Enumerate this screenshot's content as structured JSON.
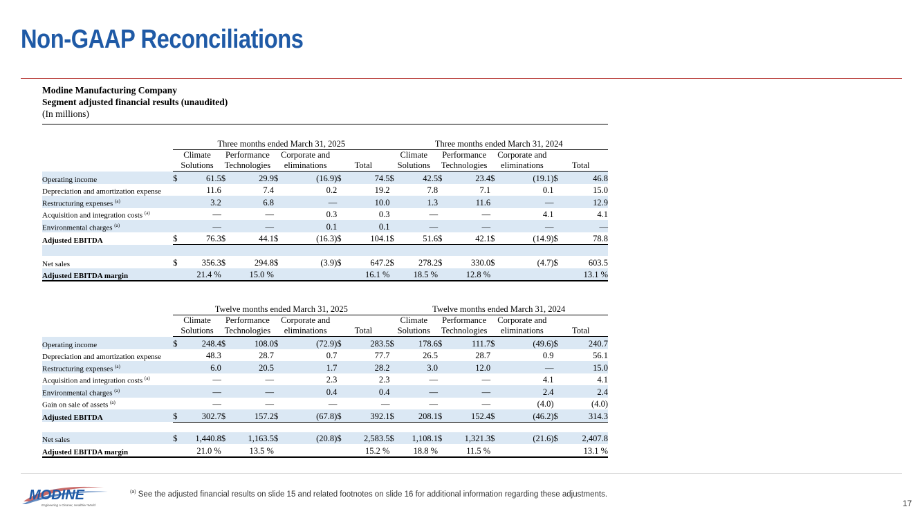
{
  "title": "Non-GAAP Reconciliations",
  "company": {
    "name": "Modine Manufacturing Company",
    "subtitle": "Segment adjusted financial results (unaudited)",
    "units": "(In millions)"
  },
  "columns": {
    "climate": [
      "Climate",
      "Solutions"
    ],
    "performance": [
      "Performance",
      "Technologies"
    ],
    "corporate": [
      "Corporate and",
      "eliminations"
    ],
    "total": "Total"
  },
  "table1": {
    "period_a": "Three months ended March 31, 2025",
    "period_b": "Three months ended March 31, 2024",
    "rows": [
      {
        "label": "Operating income",
        "shade": true,
        "cells": [
          "$",
          "61.5",
          "$",
          "29.9",
          "$",
          "(16.9)",
          "$",
          "74.5",
          "$",
          "42.5",
          "$",
          "23.4",
          "$",
          "(19.1)",
          "$",
          "46.8"
        ]
      },
      {
        "label": "Depreciation and amortization expense",
        "shade": false,
        "cells": [
          "",
          "11.6",
          "",
          "7.4",
          "",
          "0.2",
          "",
          "19.2",
          "",
          "7.8",
          "",
          "7.1",
          "",
          "0.1",
          "",
          "15.0"
        ]
      },
      {
        "label": "Restructuring expenses",
        "sup": "(a)",
        "shade": true,
        "cells": [
          "",
          "3.2",
          "",
          "6.8",
          "",
          "—",
          "",
          "10.0",
          "",
          "1.3",
          "",
          "11.6",
          "",
          "—",
          "",
          "12.9"
        ]
      },
      {
        "label": "Acquisition and integration costs",
        "sup": "(a)",
        "shade": false,
        "cells": [
          "",
          "—",
          "",
          "—",
          "",
          "0.3",
          "",
          "0.3",
          "",
          "—",
          "",
          "—",
          "",
          "4.1",
          "",
          "4.1"
        ]
      },
      {
        "label": "Environmental charges",
        "sup": "(a)",
        "shade": true,
        "cells": [
          "",
          "—",
          "",
          "—",
          "",
          "0.1",
          "",
          "0.1",
          "",
          "—",
          "",
          "—",
          "",
          "—",
          "",
          "—"
        ]
      },
      {
        "label": "Adjusted EBITDA",
        "bold": true,
        "shade": false,
        "cells": [
          "$",
          "76.3",
          "$",
          "44.1",
          "$",
          "(16.3)",
          "$",
          "104.1",
          "$",
          "51.6",
          "$",
          "42.1",
          "$",
          "(14.9)",
          "$",
          "78.8"
        ]
      },
      {
        "label": "Net sales",
        "shade": false,
        "cells": [
          "$",
          "356.3",
          "$",
          "294.8",
          "$",
          "(3.9)",
          "$",
          "647.2",
          "$",
          "278.2",
          "$",
          "330.0",
          "$",
          "(4.7)",
          "$",
          "603.5"
        ]
      },
      {
        "label": "Adjusted EBITDA margin",
        "bold": true,
        "shade": true,
        "cells": [
          "",
          "21.4 %",
          "",
          "15.0 %",
          "",
          "",
          "",
          "16.1 %",
          "",
          "18.5 %",
          "",
          "12.8 %",
          "",
          "",
          "",
          "13.1 %"
        ]
      }
    ]
  },
  "table2": {
    "period_a": "Twelve months ended March 31, 2025",
    "period_b": "Twelve months ended March 31, 2024",
    "rows": [
      {
        "label": "Operating income",
        "shade": true,
        "cells": [
          "$",
          "248.4",
          "$",
          "108.0",
          "$",
          "(72.9)",
          "$",
          "283.5",
          "$",
          "178.6",
          "$",
          "111.7",
          "$",
          "(49.6)",
          "$",
          "240.7"
        ]
      },
      {
        "label": "Depreciation and amortization expense",
        "shade": false,
        "cells": [
          "",
          "48.3",
          "",
          "28.7",
          "",
          "0.7",
          "",
          "77.7",
          "",
          "26.5",
          "",
          "28.7",
          "",
          "0.9",
          "",
          "56.1"
        ]
      },
      {
        "label": "Restructuring expenses",
        "sup": "(a)",
        "shade": true,
        "cells": [
          "",
          "6.0",
          "",
          "20.5",
          "",
          "1.7",
          "",
          "28.2",
          "",
          "3.0",
          "",
          "12.0",
          "",
          "—",
          "",
          "15.0"
        ]
      },
      {
        "label": "Acquisition and integration costs",
        "sup": "(a)",
        "shade": false,
        "cells": [
          "",
          "—",
          "",
          "—",
          "",
          "2.3",
          "",
          "2.3",
          "",
          "—",
          "",
          "—",
          "",
          "4.1",
          "",
          "4.1"
        ]
      },
      {
        "label": "Environmental charges",
        "sup": "(a)",
        "shade": true,
        "cells": [
          "",
          "—",
          "",
          "—",
          "",
          "0.4",
          "",
          "0.4",
          "",
          "—",
          "",
          "—",
          "",
          "2.4",
          "",
          "2.4"
        ]
      },
      {
        "label": "Gain on sale of assets",
        "sup": "(a)",
        "shade": false,
        "cells": [
          "",
          "—",
          "",
          "—",
          "",
          "—",
          "",
          "—",
          "",
          "—",
          "",
          "—",
          "",
          "(4.0)",
          "",
          "(4.0)"
        ]
      },
      {
        "label": "Adjusted EBITDA",
        "bold": true,
        "shade": true,
        "cells": [
          "$",
          "302.7",
          "$",
          "157.2",
          "$",
          "(67.8)",
          "$",
          "392.1",
          "$",
          "208.1",
          "$",
          "152.4",
          "$",
          "(46.2)",
          "$",
          "314.3"
        ]
      },
      {
        "label": "Net sales",
        "shade": true,
        "cells": [
          "$",
          "1,440.8",
          "$",
          "1,163.5",
          "$",
          "(20.8)",
          "$",
          "2,583.5",
          "$",
          "1,108.1",
          "$",
          "1,321.3",
          "$",
          "(21.6)",
          "$",
          "2,407.8"
        ]
      },
      {
        "label": "Adjusted EBITDA margin",
        "bold": true,
        "shade": false,
        "cells": [
          "",
          "21.0 %",
          "",
          "13.5 %",
          "",
          "",
          "",
          "15.2 %",
          "",
          "18.8 %",
          "",
          "11.5 %",
          "",
          "",
          "",
          "13.1 %"
        ]
      }
    ]
  },
  "footnote": {
    "sup": "(a)",
    "text": " See the adjusted financial results on slide 15 and related footnotes on slide 16 for additional information regarding these adjustments."
  },
  "logo": {
    "name": "MODINE",
    "tagline": "Engineering a Cleaner, Healthier World",
    "color": "#1f5aa6",
    "accent": "#c0504d"
  },
  "page_number": "17",
  "colors": {
    "title": "#1f5aa6",
    "rule": "#c0504d",
    "shade": "#dbe8f4"
  }
}
